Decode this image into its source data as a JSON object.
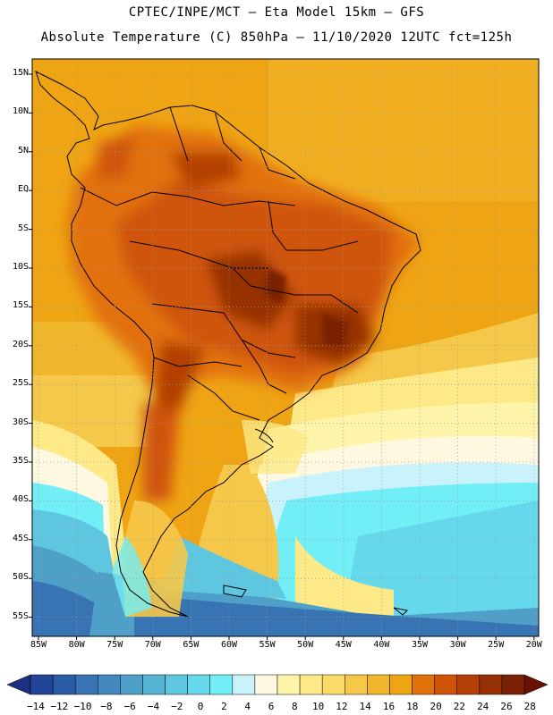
{
  "header": {
    "line1": "CPTEC/INPE/MCT –  Eta Model 15km – GFS",
    "line2": "Absolute Temperature (C) 850hPa – 11/10/2020 12UTC fct=125h"
  },
  "axes": {
    "lat_labels": [
      "15N",
      "10N",
      "5N",
      "EQ",
      "5S",
      "10S",
      "15S",
      "20S",
      "25S",
      "30S",
      "35S",
      "40S",
      "45S",
      "50S",
      "55S"
    ],
    "lon_labels": [
      "85W",
      "80W",
      "75W",
      "70W",
      "65W",
      "60W",
      "55W",
      "50W",
      "45W",
      "40W",
      "35W",
      "30W",
      "25W",
      "20W"
    ]
  },
  "colorbar": {
    "labels": [
      "-14",
      "-12",
      "-10",
      "-8",
      "-6",
      "-4",
      "-2",
      "0",
      "2",
      "4",
      "6",
      "8",
      "10",
      "12",
      "14",
      "16",
      "18",
      "20",
      "22",
      "24",
      "26",
      "28"
    ],
    "colors": [
      "#22449a",
      "#2b5ca8",
      "#3873b4",
      "#4389c0",
      "#4ea0c8",
      "#58b4d4",
      "#5fc6e0",
      "#66d8ec",
      "#72eef6",
      "#c9f2fa",
      "#fff8e0",
      "#fff5aa",
      "#fde987",
      "#fadb6a",
      "#f5c84a",
      "#f2b62c",
      "#efa414",
      "#e2710c",
      "#cf5408",
      "#b34006",
      "#963006",
      "#7a2004"
    ]
  },
  "map": {
    "colors": {
      "border": "#000000",
      "grid": "#9a9a9a",
      "ocean_warm": "#efa414",
      "land_hot": "#cf5408",
      "land_hotter": "#b34006",
      "cold_south": "#4ea0c8"
    }
  }
}
